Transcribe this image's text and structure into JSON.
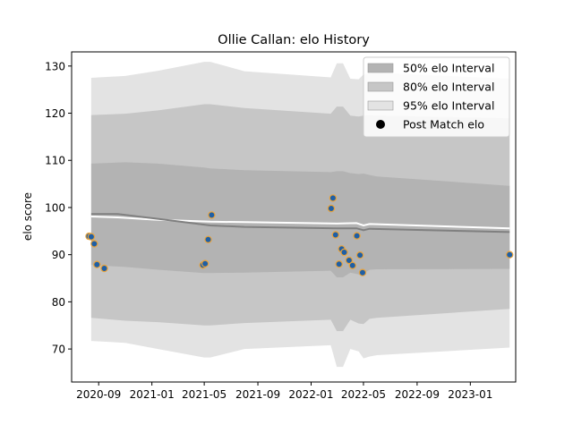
{
  "chart_data": {
    "type": "line",
    "title": "Ollie Callan: elo History",
    "xlabel": "",
    "ylabel": "elo score",
    "xlim": [
      "2020-07-01",
      "2023-04-15"
    ],
    "ylim": [
      63,
      133
    ],
    "grid": false,
    "legend_position": "top-right",
    "x_ticks": [
      "2020-09",
      "2021-01",
      "2021-05",
      "2021-09",
      "2022-01",
      "2022-05",
      "2022-09",
      "2023-01"
    ],
    "y_ticks": [
      70,
      80,
      90,
      100,
      110,
      120,
      130
    ],
    "legend": [
      {
        "label": "50% elo Interval",
        "kind": "band",
        "color": "#b3b3b3"
      },
      {
        "label": "80% elo Interval",
        "kind": "band",
        "color": "#c6c6c6"
      },
      {
        "label": "95% elo Interval",
        "kind": "band",
        "color": "#e3e3e3"
      },
      {
        "label": "Post Match elo",
        "kind": "marker",
        "color": "#000000"
      }
    ],
    "intervals": {
      "x": [
        "2020-08-15",
        "2020-11-01",
        "2021-01-15",
        "2021-05-01",
        "2021-05-15",
        "2021-08-01",
        "2022-02-15",
        "2022-03-01",
        "2022-03-15",
        "2022-04-01",
        "2022-04-20",
        "2022-05-01",
        "2022-05-15",
        "2022-06-01",
        "2023-04-01"
      ],
      "median": [
        98.6,
        98.6,
        97.6,
        96.2,
        96.1,
        95.9,
        95.7,
        95.6,
        95.6,
        95.8,
        95.3,
        95.2,
        95.5,
        95.5,
        94.8
      ],
      "q25": [
        87.8,
        87.4,
        86.8,
        86.1,
        86.1,
        86.2,
        86.6,
        85.2,
        85.2,
        86.2,
        85.8,
        86.0,
        86.8,
        86.9,
        87.0
      ],
      "q75": [
        109.3,
        109.6,
        109.3,
        108.5,
        108.3,
        107.9,
        107.5,
        107.7,
        107.7,
        107.3,
        107.1,
        107.2,
        106.9,
        106.6,
        104.6
      ],
      "q10": [
        76.6,
        76.0,
        75.7,
        75.0,
        75.0,
        75.5,
        76.2,
        73.8,
        73.8,
        76.2,
        75.4,
        75.3,
        76.4,
        76.6,
        78.5
      ],
      "q90": [
        119.6,
        119.9,
        120.6,
        121.9,
        121.9,
        121.1,
        119.9,
        121.4,
        121.4,
        119.5,
        119.3,
        119.5,
        119.6,
        119.5,
        118.9
      ],
      "q025": [
        71.7,
        71.3,
        70.0,
        68.2,
        68.2,
        70.0,
        70.8,
        66.2,
        66.2,
        70.0,
        69.5,
        68.0,
        68.4,
        68.7,
        70.3
      ],
      "q975": [
        127.5,
        127.9,
        129.0,
        130.9,
        130.9,
        128.9,
        127.6,
        130.6,
        130.6,
        127.3,
        127.2,
        128.2,
        128.5,
        128.6,
        127.3
      ]
    },
    "series": [
      {
        "kind": "line",
        "color": "#ffffff",
        "x": [
          "2020-08-15",
          "2020-10-15",
          "2021-01-15",
          "2021-05-15",
          "2021-08-01",
          "2022-03-01",
          "2022-04-15",
          "2022-05-01",
          "2022-05-15",
          "2023-04-01"
        ],
        "y": [
          98.1,
          97.9,
          97.4,
          97.0,
          96.9,
          96.6,
          96.7,
          96.2,
          96.5,
          95.6
        ]
      },
      {
        "kind": "line",
        "color": "#808080",
        "x": [
          "2020-08-15",
          "2020-10-15",
          "2021-01-15",
          "2021-05-15",
          "2021-08-01",
          "2022-03-01",
          "2022-04-15",
          "2022-05-01",
          "2022-05-15",
          "2023-04-01"
        ],
        "y": [
          98.6,
          98.6,
          97.6,
          96.2,
          95.9,
          95.6,
          95.6,
          95.2,
          95.5,
          94.8
        ]
      },
      {
        "name": "Post Match elo",
        "kind": "scatter",
        "color": "#1f5fa5",
        "edge_color": "#e8a33d",
        "x": [
          "2020-08-10",
          "2020-08-15",
          "2020-08-22",
          "2020-08-28",
          "2020-09-14",
          "2021-04-28",
          "2021-05-03",
          "2021-05-10",
          "2021-05-18",
          "2022-02-16",
          "2022-02-20",
          "2022-02-26",
          "2022-03-06",
          "2022-03-12",
          "2022-03-18",
          "2022-03-29",
          "2022-04-06",
          "2022-04-16",
          "2022-04-23",
          "2022-04-29",
          "2023-04-01"
        ],
        "y": [
          93.9,
          93.8,
          92.3,
          87.9,
          87.1,
          87.8,
          88.1,
          93.2,
          98.4,
          99.8,
          102.0,
          94.2,
          88.0,
          91.2,
          90.5,
          88.8,
          87.7,
          94.0,
          89.9,
          86.2,
          90.0
        ]
      }
    ]
  }
}
